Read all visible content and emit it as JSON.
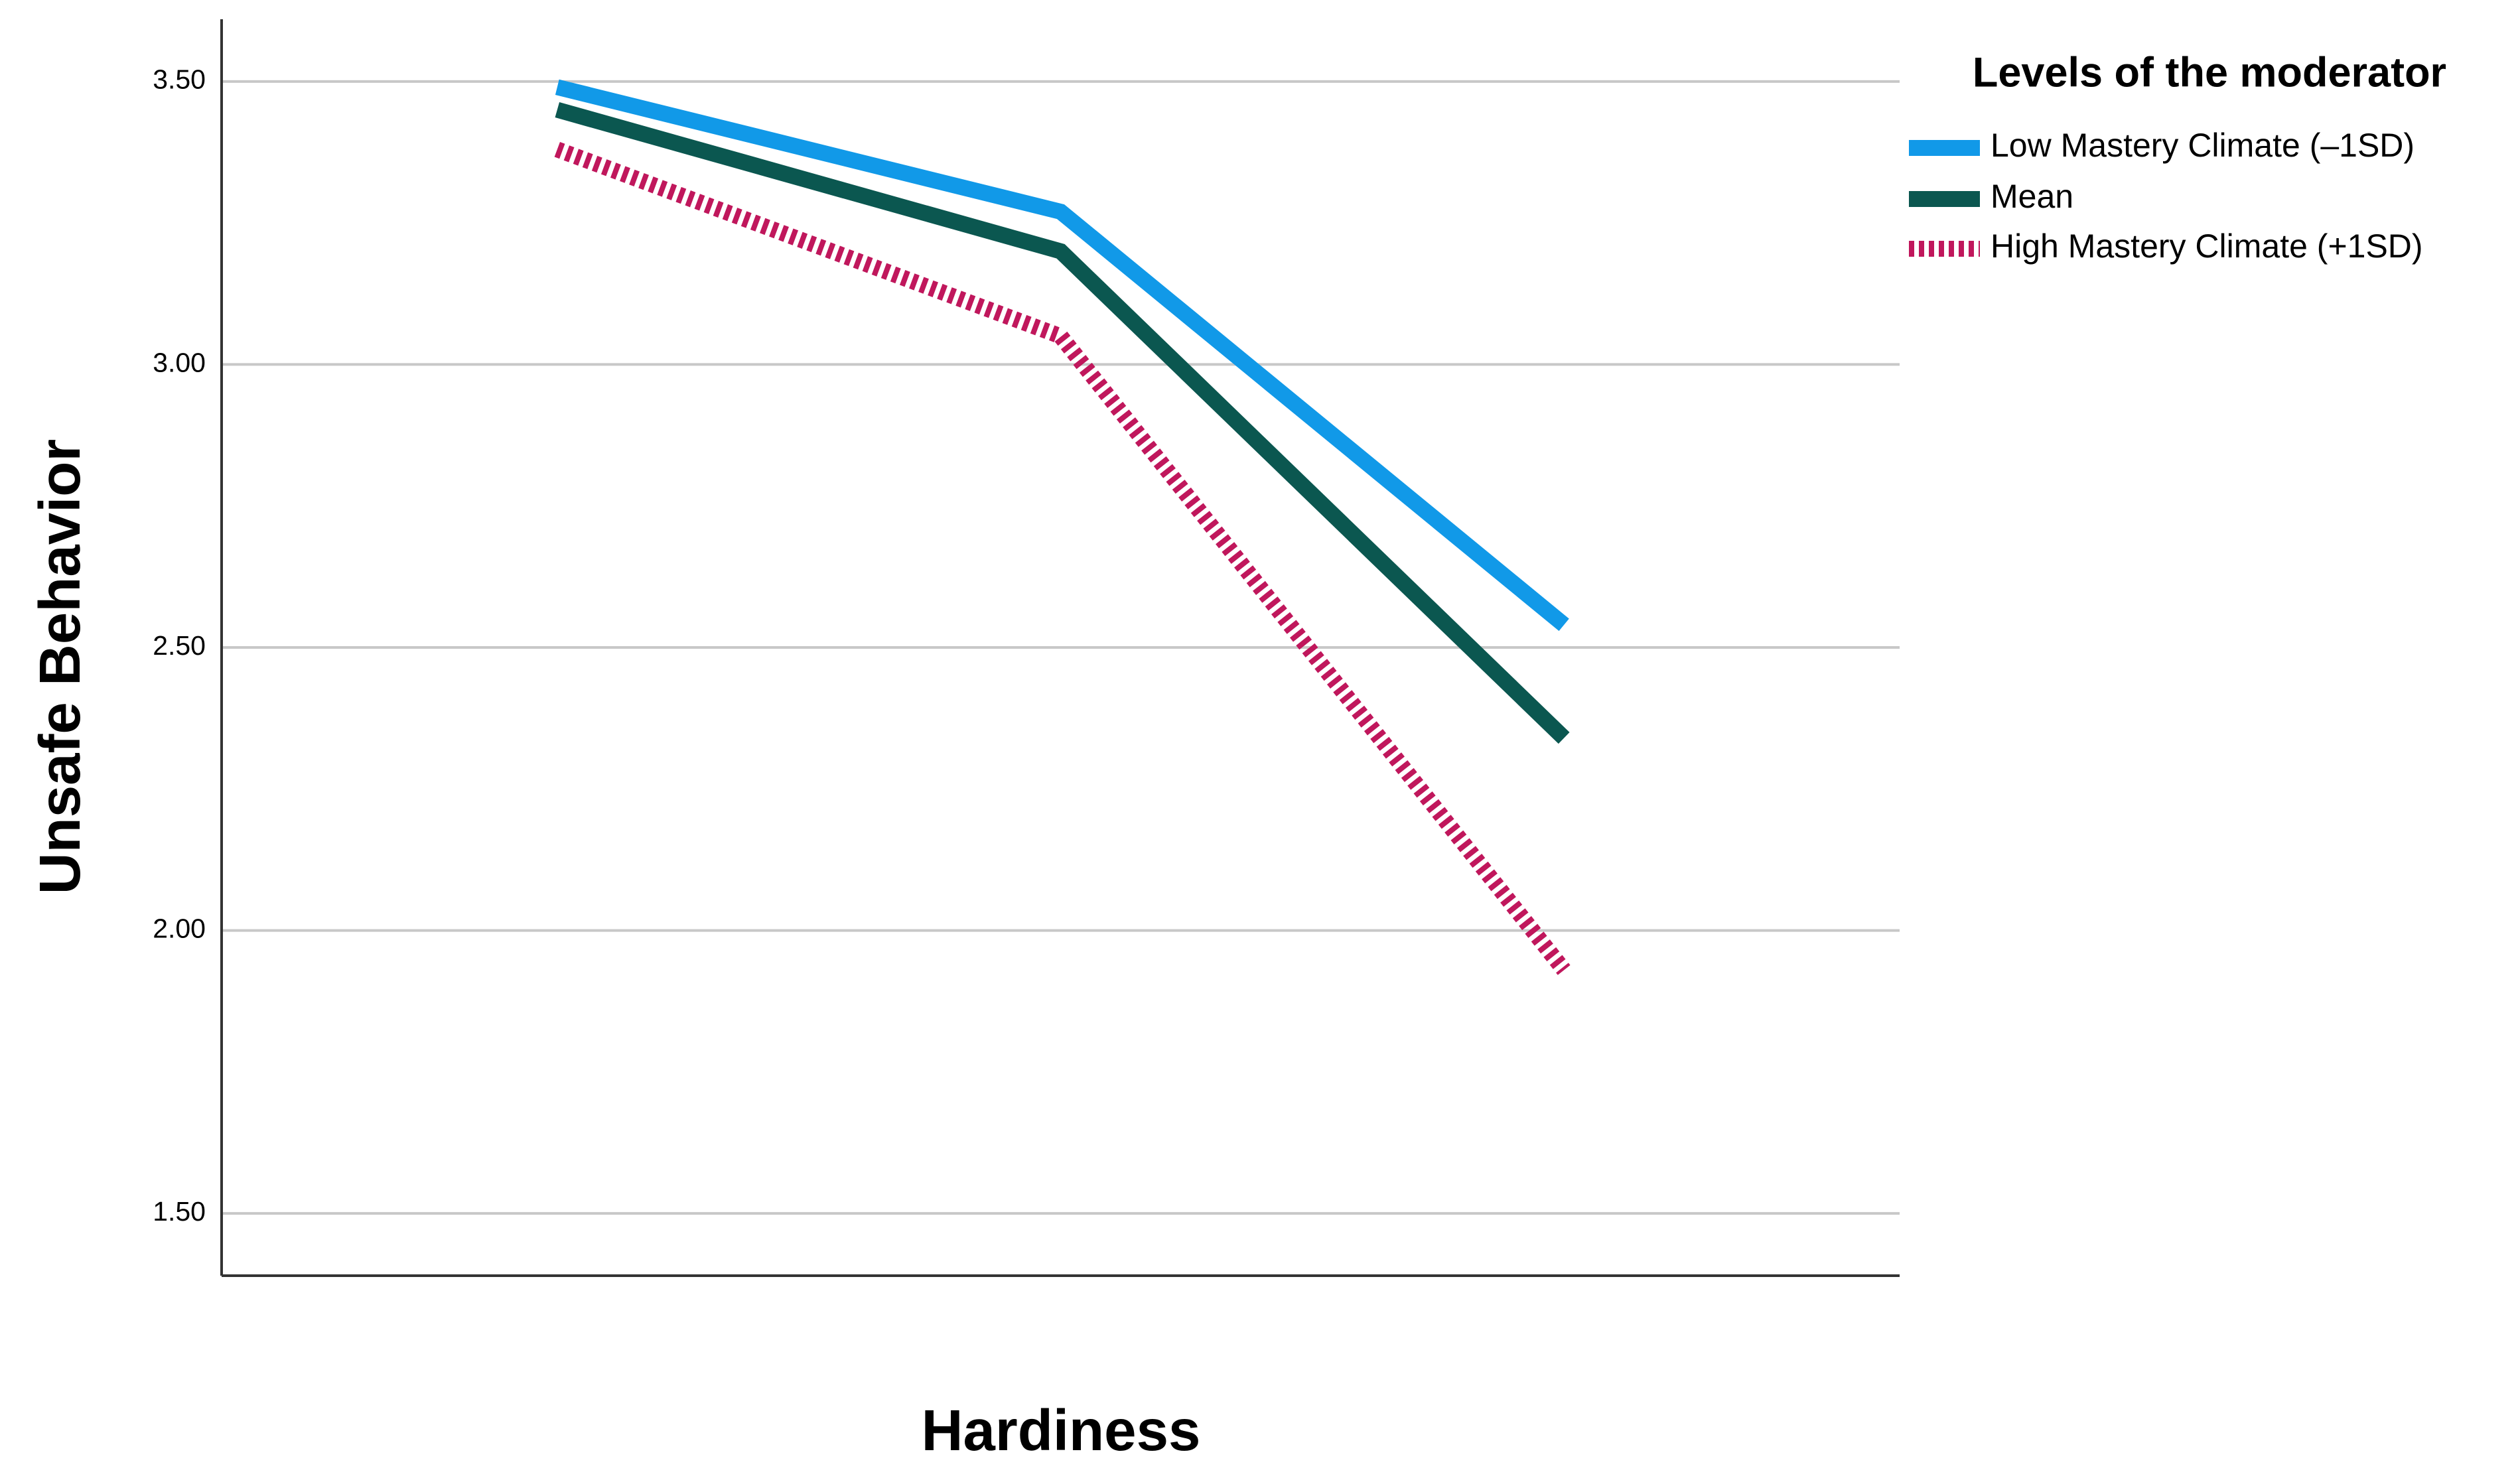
{
  "chart_data": {
    "type": "line",
    "x_label": "Hardiness",
    "y_label": "Unsafe Behavior",
    "legend_title": "Levels of the moderator",
    "legend": "right",
    "grid": true,
    "categories": [
      null,
      null,
      null
    ],
    "ylim": [
      1.39,
      3.61
    ],
    "yticks": [
      {
        "value": 1.5,
        "label": "1.50"
      },
      {
        "value": 2.0,
        "label": "2.00"
      },
      {
        "value": 2.5,
        "label": "2.50"
      },
      {
        "value": 3.0,
        "label": "3.00"
      },
      {
        "value": 3.5,
        "label": "3.50"
      }
    ],
    "series": [
      {
        "name": "Low Mastery Climate (–1SD)",
        "color": "#1199e8",
        "dashed": false,
        "values": [
          3.49,
          3.27,
          2.54
        ]
      },
      {
        "name": "Mean",
        "color": "#0b5750",
        "dashed": false,
        "values": [
          3.45,
          3.2,
          2.34
        ]
      },
      {
        "name": "High Mastery Climate (+1SD)",
        "color": "#c0175c",
        "dashed": true,
        "values": [
          3.38,
          3.05,
          1.93
        ]
      }
    ]
  }
}
